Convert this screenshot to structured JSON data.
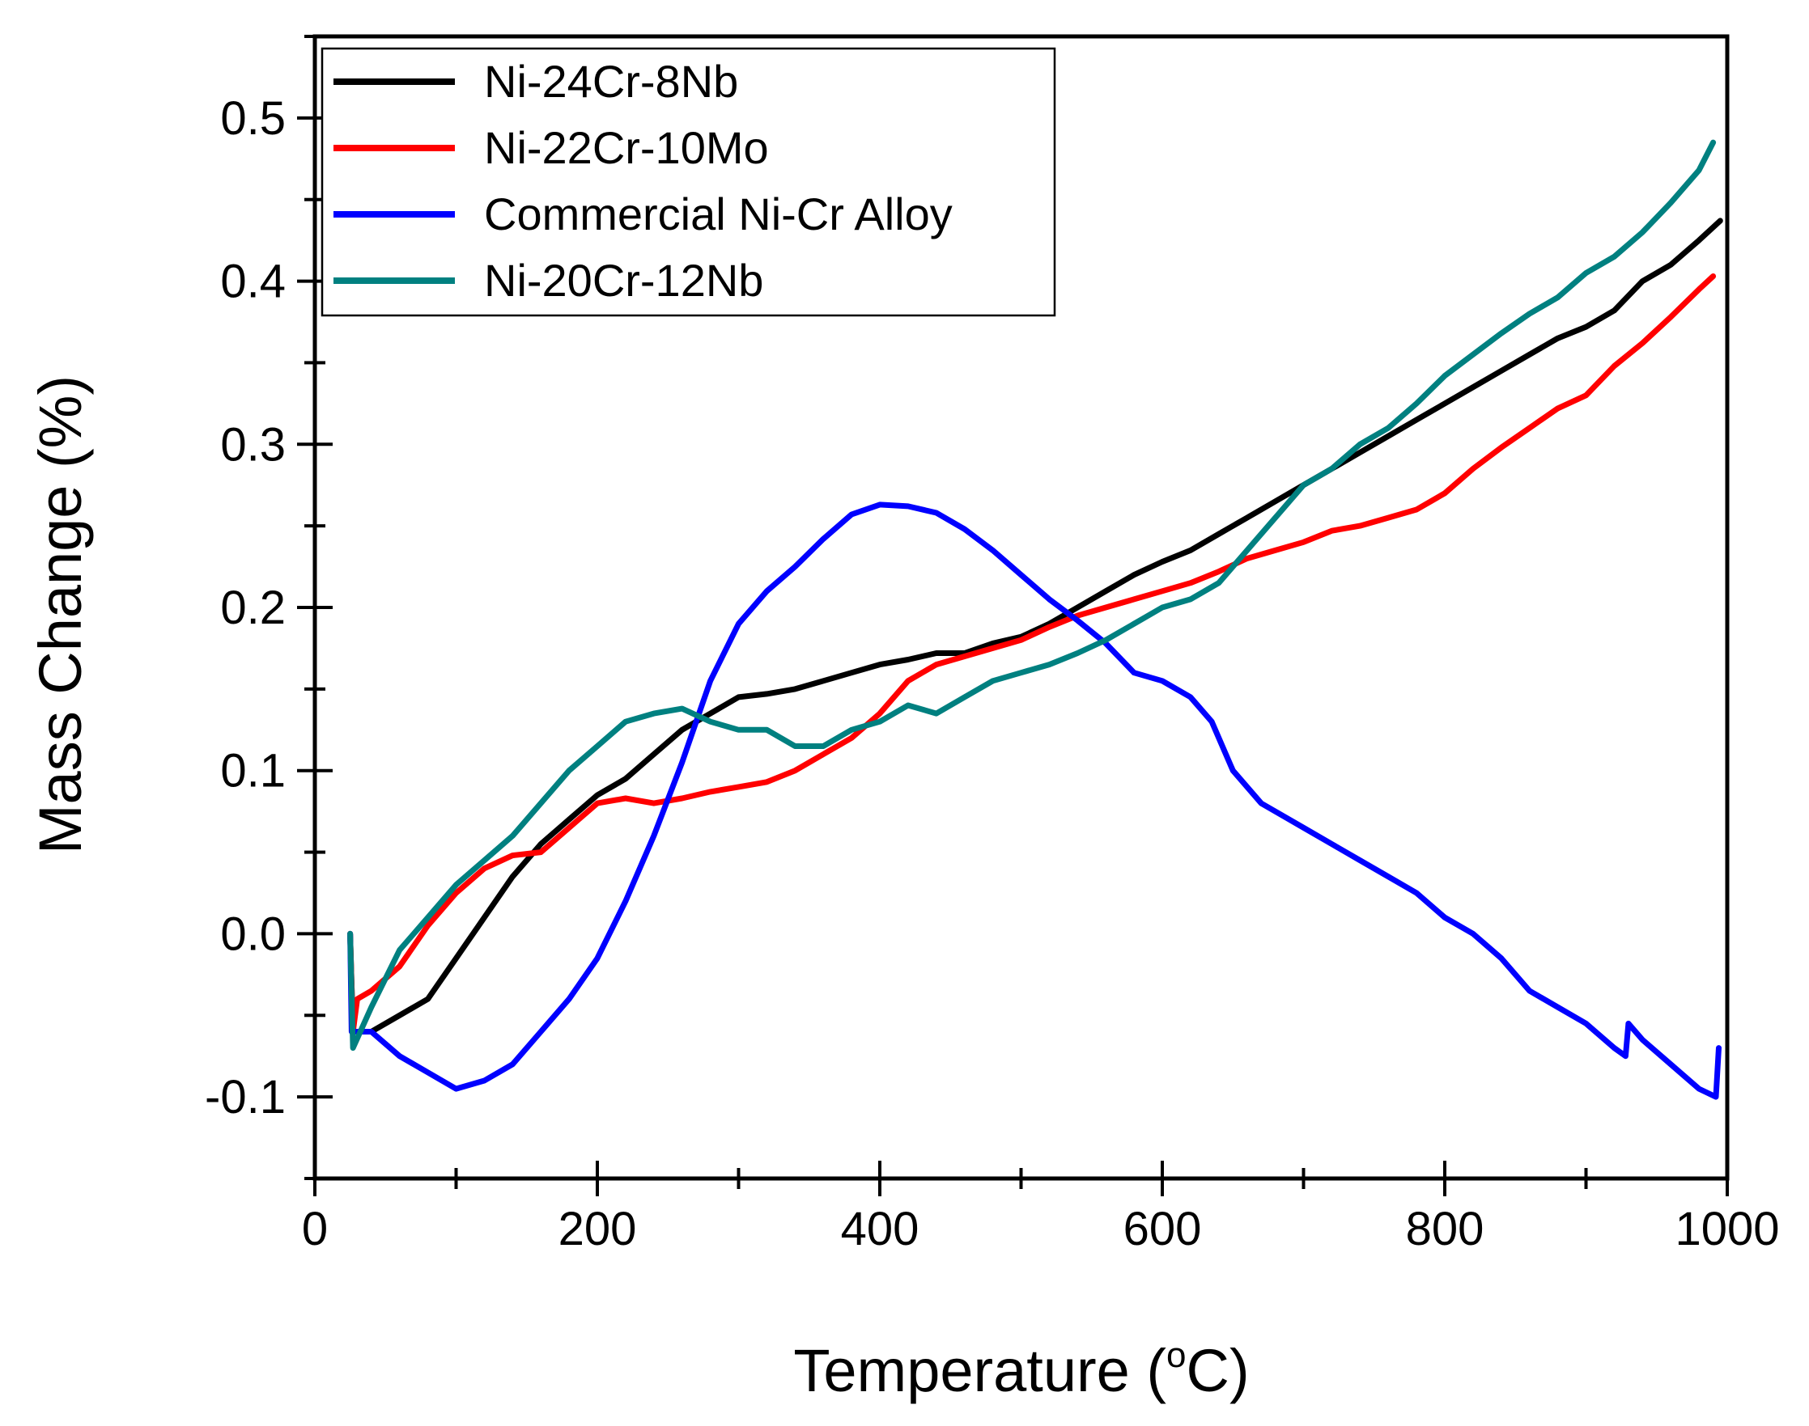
{
  "chart_data": {
    "type": "line",
    "title": "",
    "xlabel": "Temperature (",
    "xlabel_sup": "o",
    "xlabel_end": "C)",
    "ylabel": "Mass Change (%)",
    "xlim": [
      0,
      1000
    ],
    "ylim": [
      -0.15,
      0.55
    ],
    "xticks": [
      0,
      200,
      400,
      600,
      800,
      1000
    ],
    "xtick_labels": [
      "0",
      "200",
      "400",
      "600",
      "800",
      "1000"
    ],
    "yticks": [
      -0.1,
      0.0,
      0.1,
      0.2,
      0.3,
      0.4,
      0.5
    ],
    "ytick_labels": [
      "-0.1",
      "0.0",
      "0.1",
      "0.2",
      "0.3",
      "0.4",
      "0.5"
    ],
    "grid": false,
    "legend_position": "top-left",
    "series": [
      {
        "name": "Ni-24Cr-8Nb",
        "color": "#000000",
        "points": [
          [
            25,
            0.0
          ],
          [
            27,
            -0.06
          ],
          [
            40,
            -0.06
          ],
          [
            60,
            -0.05
          ],
          [
            80,
            -0.04
          ],
          [
            100,
            -0.015
          ],
          [
            120,
            0.01
          ],
          [
            140,
            0.035
          ],
          [
            160,
            0.055
          ],
          [
            180,
            0.07
          ],
          [
            200,
            0.085
          ],
          [
            220,
            0.095
          ],
          [
            240,
            0.11
          ],
          [
            260,
            0.125
          ],
          [
            280,
            0.135
          ],
          [
            300,
            0.145
          ],
          [
            320,
            0.147
          ],
          [
            340,
            0.15
          ],
          [
            360,
            0.155
          ],
          [
            380,
            0.16
          ],
          [
            400,
            0.165
          ],
          [
            420,
            0.168
          ],
          [
            440,
            0.172
          ],
          [
            460,
            0.172
          ],
          [
            480,
            0.178
          ],
          [
            500,
            0.182
          ],
          [
            520,
            0.19
          ],
          [
            540,
            0.2
          ],
          [
            560,
            0.21
          ],
          [
            580,
            0.22
          ],
          [
            600,
            0.228
          ],
          [
            620,
            0.235
          ],
          [
            640,
            0.245
          ],
          [
            660,
            0.255
          ],
          [
            680,
            0.265
          ],
          [
            700,
            0.275
          ],
          [
            720,
            0.285
          ],
          [
            740,
            0.295
          ],
          [
            760,
            0.305
          ],
          [
            780,
            0.315
          ],
          [
            800,
            0.325
          ],
          [
            820,
            0.335
          ],
          [
            840,
            0.345
          ],
          [
            860,
            0.355
          ],
          [
            880,
            0.365
          ],
          [
            900,
            0.372
          ],
          [
            920,
            0.382
          ],
          [
            940,
            0.4
          ],
          [
            960,
            0.41
          ],
          [
            980,
            0.425
          ],
          [
            995,
            0.437
          ]
        ]
      },
      {
        "name": "Ni-22Cr-10Mo",
        "color": "#ff0000",
        "points": [
          [
            25,
            0.0
          ],
          [
            27,
            -0.06
          ],
          [
            30,
            -0.04
          ],
          [
            40,
            -0.035
          ],
          [
            60,
            -0.02
          ],
          [
            80,
            0.005
          ],
          [
            100,
            0.025
          ],
          [
            120,
            0.04
          ],
          [
            140,
            0.048
          ],
          [
            160,
            0.05
          ],
          [
            180,
            0.065
          ],
          [
            200,
            0.08
          ],
          [
            220,
            0.083
          ],
          [
            240,
            0.08
          ],
          [
            260,
            0.083
          ],
          [
            280,
            0.087
          ],
          [
            300,
            0.09
          ],
          [
            320,
            0.093
          ],
          [
            340,
            0.1
          ],
          [
            360,
            0.11
          ],
          [
            380,
            0.12
          ],
          [
            400,
            0.135
          ],
          [
            420,
            0.155
          ],
          [
            440,
            0.165
          ],
          [
            460,
            0.17
          ],
          [
            480,
            0.175
          ],
          [
            500,
            0.18
          ],
          [
            520,
            0.188
          ],
          [
            540,
            0.195
          ],
          [
            560,
            0.2
          ],
          [
            580,
            0.205
          ],
          [
            600,
            0.21
          ],
          [
            620,
            0.215
          ],
          [
            640,
            0.222
          ],
          [
            660,
            0.23
          ],
          [
            680,
            0.235
          ],
          [
            700,
            0.24
          ],
          [
            720,
            0.247
          ],
          [
            740,
            0.25
          ],
          [
            760,
            0.255
          ],
          [
            780,
            0.26
          ],
          [
            800,
            0.27
          ],
          [
            820,
            0.285
          ],
          [
            840,
            0.298
          ],
          [
            860,
            0.31
          ],
          [
            880,
            0.322
          ],
          [
            900,
            0.33
          ],
          [
            920,
            0.348
          ],
          [
            940,
            0.362
          ],
          [
            960,
            0.378
          ],
          [
            980,
            0.395
          ],
          [
            990,
            0.403
          ]
        ]
      },
      {
        "name": "Commercial Ni-Cr Alloy",
        "color": "#0000ff",
        "points": [
          [
            25,
            0.0
          ],
          [
            26,
            -0.06
          ],
          [
            40,
            -0.06
          ],
          [
            60,
            -0.075
          ],
          [
            80,
            -0.085
          ],
          [
            100,
            -0.095
          ],
          [
            120,
            -0.09
          ],
          [
            140,
            -0.08
          ],
          [
            160,
            -0.06
          ],
          [
            180,
            -0.04
          ],
          [
            200,
            -0.015
          ],
          [
            220,
            0.02
          ],
          [
            240,
            0.06
          ],
          [
            260,
            0.105
          ],
          [
            280,
            0.155
          ],
          [
            300,
            0.19
          ],
          [
            320,
            0.21
          ],
          [
            340,
            0.225
          ],
          [
            360,
            0.242
          ],
          [
            380,
            0.257
          ],
          [
            400,
            0.263
          ],
          [
            420,
            0.262
          ],
          [
            440,
            0.258
          ],
          [
            460,
            0.248
          ],
          [
            480,
            0.235
          ],
          [
            500,
            0.22
          ],
          [
            520,
            0.205
          ],
          [
            540,
            0.192
          ],
          [
            560,
            0.178
          ],
          [
            580,
            0.16
          ],
          [
            600,
            0.155
          ],
          [
            620,
            0.145
          ],
          [
            635,
            0.13
          ],
          [
            650,
            0.1
          ],
          [
            670,
            0.08
          ],
          [
            700,
            0.065
          ],
          [
            720,
            0.055
          ],
          [
            740,
            0.045
          ],
          [
            760,
            0.035
          ],
          [
            780,
            0.025
          ],
          [
            800,
            0.01
          ],
          [
            820,
            0.0
          ],
          [
            840,
            -0.015
          ],
          [
            860,
            -0.035
          ],
          [
            880,
            -0.045
          ],
          [
            900,
            -0.055
          ],
          [
            920,
            -0.07
          ],
          [
            928,
            -0.075
          ],
          [
            930,
            -0.055
          ],
          [
            940,
            -0.065
          ],
          [
            960,
            -0.08
          ],
          [
            980,
            -0.095
          ],
          [
            992,
            -0.1
          ],
          [
            994,
            -0.07
          ]
        ]
      },
      {
        "name": "Ni-20Cr-12Nb",
        "color": "#008080",
        "points": [
          [
            25,
            0.0
          ],
          [
            27,
            -0.07
          ],
          [
            40,
            -0.045
          ],
          [
            60,
            -0.01
          ],
          [
            80,
            0.01
          ],
          [
            100,
            0.03
          ],
          [
            120,
            0.045
          ],
          [
            140,
            0.06
          ],
          [
            160,
            0.08
          ],
          [
            180,
            0.1
          ],
          [
            200,
            0.115
          ],
          [
            220,
            0.13
          ],
          [
            240,
            0.135
          ],
          [
            260,
            0.138
          ],
          [
            280,
            0.13
          ],
          [
            300,
            0.125
          ],
          [
            320,
            0.125
          ],
          [
            340,
            0.115
          ],
          [
            360,
            0.115
          ],
          [
            380,
            0.125
          ],
          [
            400,
            0.13
          ],
          [
            420,
            0.14
          ],
          [
            440,
            0.135
          ],
          [
            460,
            0.145
          ],
          [
            480,
            0.155
          ],
          [
            500,
            0.16
          ],
          [
            520,
            0.165
          ],
          [
            540,
            0.172
          ],
          [
            560,
            0.18
          ],
          [
            580,
            0.19
          ],
          [
            600,
            0.2
          ],
          [
            620,
            0.205
          ],
          [
            640,
            0.215
          ],
          [
            660,
            0.235
          ],
          [
            680,
            0.255
          ],
          [
            700,
            0.275
          ],
          [
            720,
            0.285
          ],
          [
            740,
            0.3
          ],
          [
            760,
            0.31
          ],
          [
            780,
            0.325
          ],
          [
            800,
            0.342
          ],
          [
            820,
            0.355
          ],
          [
            840,
            0.368
          ],
          [
            860,
            0.38
          ],
          [
            880,
            0.39
          ],
          [
            900,
            0.405
          ],
          [
            920,
            0.415
          ],
          [
            940,
            0.43
          ],
          [
            960,
            0.448
          ],
          [
            980,
            0.468
          ],
          [
            990,
            0.485
          ]
        ]
      }
    ]
  }
}
